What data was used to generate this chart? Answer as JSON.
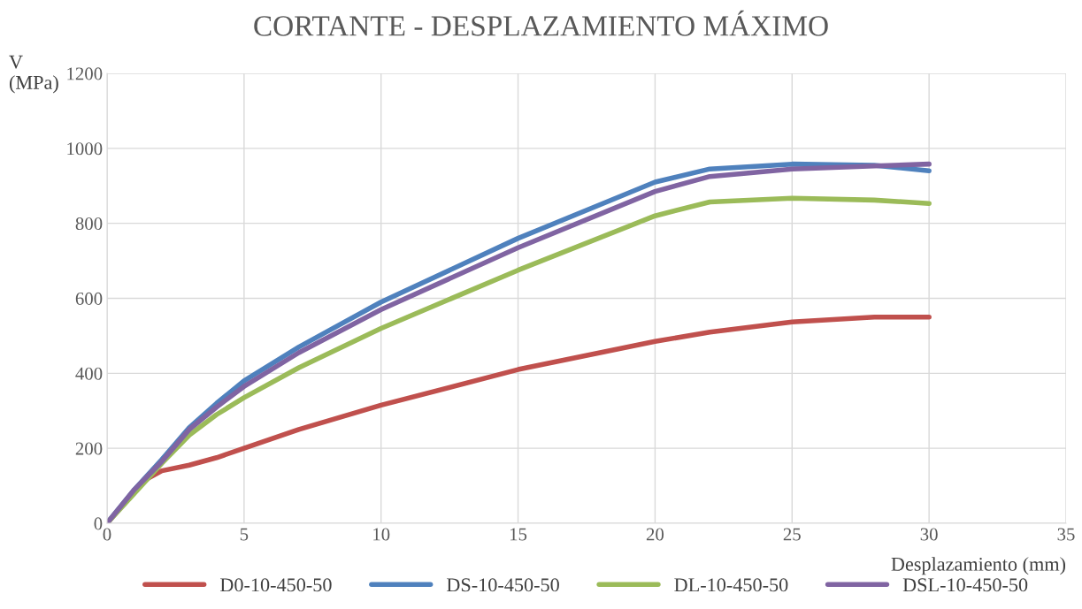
{
  "chart_data": {
    "type": "line",
    "title": "CORTANTE - DESPLAZAMIENTO MÁXIMO",
    "xlabel": "Desplazamiento (mm)",
    "ylabel": "V\n(MPa)",
    "xlim": [
      0,
      35
    ],
    "xticks": [
      0,
      5,
      10,
      15,
      20,
      25,
      30,
      35
    ],
    "ylim": [
      0,
      1200
    ],
    "yticks": [
      0,
      200,
      400,
      600,
      800,
      1000,
      1200
    ],
    "grid": true,
    "legend": "bottom",
    "marker": "none",
    "line_style": "solid",
    "series": [
      {
        "name": "D0-10-450-50",
        "color": "#c0504d",
        "x": [
          0,
          1,
          1.5,
          2,
          3,
          4,
          5,
          7,
          10,
          15,
          20,
          22,
          25,
          28,
          30
        ],
        "values": [
          0,
          85,
          120,
          140,
          155,
          175,
          200,
          250,
          315,
          410,
          485,
          510,
          537,
          550,
          550
        ]
      },
      {
        "name": "DS-10-450-50",
        "color": "#4f81bd",
        "x": [
          0,
          1,
          2,
          3,
          4,
          5,
          7,
          10,
          15,
          20,
          22,
          25,
          28,
          30
        ],
        "values": [
          0,
          90,
          170,
          255,
          320,
          380,
          470,
          590,
          760,
          910,
          945,
          958,
          955,
          940
        ]
      },
      {
        "name": "DL-10-450-50",
        "color": "#9bbb59",
        "x": [
          0,
          1,
          2,
          3,
          4,
          5,
          7,
          10,
          15,
          20,
          22,
          25,
          28,
          30
        ],
        "values": [
          0,
          80,
          160,
          235,
          290,
          335,
          415,
          520,
          675,
          820,
          857,
          867,
          862,
          853
        ]
      },
      {
        "name": "DSL-10-450-50",
        "color": "#8064a2",
        "x": [
          0,
          1,
          2,
          3,
          4,
          5,
          7,
          10,
          15,
          20,
          22,
          25,
          28,
          30
        ],
        "values": [
          0,
          90,
          165,
          250,
          310,
          365,
          455,
          570,
          735,
          885,
          925,
          945,
          953,
          958
        ]
      }
    ]
  }
}
